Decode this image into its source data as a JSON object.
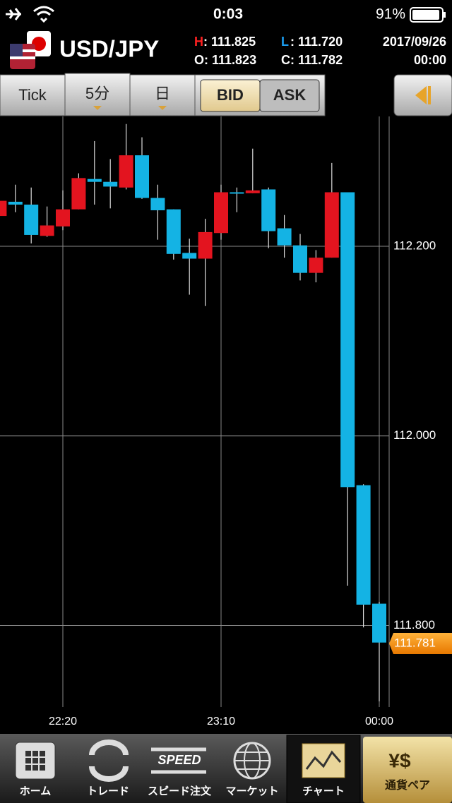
{
  "status_bar": {
    "time": "0:03",
    "battery": "91%"
  },
  "header": {
    "pair": "USD/JPY",
    "high_key": "H",
    "high": ": 111.825",
    "low_key": "L",
    "low": ": 111.720",
    "open": "O: 111.823",
    "close": "C: 111.782",
    "date": "2017/09/26",
    "time": "00:00"
  },
  "toolbar": {
    "tick": "Tick",
    "interval": "5分",
    "day": "日",
    "bid": "BID",
    "ask": "ASK"
  },
  "tabs": {
    "home": "ホーム",
    "trade": "トレード",
    "speed_icon": "SPEED",
    "speed": "スピード注文",
    "market": "マーケット",
    "chart": "チャート",
    "pairs": "通貨ペア"
  },
  "chart_data": {
    "type": "candlestick",
    "categories": [
      null,
      null,
      null,
      null,
      "22:20",
      null,
      null,
      null,
      null,
      null,
      null,
      null,
      null,
      null,
      "23:10",
      null,
      null,
      null,
      null,
      null,
      null,
      null,
      null,
      null,
      "00:00"
    ],
    "open": [
      112.232,
      112.247,
      112.244,
      112.211,
      112.221,
      112.239,
      112.271,
      112.268,
      112.262,
      112.296,
      112.251,
      112.239,
      112.193,
      112.187,
      112.214,
      112.257,
      112.256,
      112.26,
      112.219,
      112.201,
      112.172,
      112.188,
      112.257,
      111.948,
      111.823
    ],
    "high": [
      112.265,
      112.265,
      112.262,
      112.242,
      112.259,
      112.277,
      112.311,
      112.292,
      112.329,
      112.315,
      112.265,
      112.239,
      112.208,
      112.229,
      112.265,
      112.262,
      112.303,
      112.262,
      112.233,
      112.213,
      112.196,
      112.288,
      112.257,
      111.949,
      111.825
    ],
    "low": [
      112.232,
      112.236,
      112.203,
      112.21,
      112.217,
      112.239,
      112.244,
      112.24,
      112.26,
      112.25,
      112.207,
      112.186,
      112.149,
      112.137,
      112.207,
      112.236,
      112.256,
      112.198,
      112.188,
      112.164,
      112.162,
      112.188,
      111.842,
      111.798,
      111.72
    ],
    "close": [
      112.248,
      112.244,
      112.212,
      112.222,
      112.239,
      112.272,
      112.268,
      112.263,
      112.296,
      112.251,
      112.238,
      112.192,
      112.187,
      112.215,
      112.257,
      112.256,
      112.259,
      112.216,
      112.201,
      112.172,
      112.188,
      112.257,
      111.946,
      111.822,
      111.782
    ],
    "up_color": "#e3141f",
    "down_color": "#14b3e4",
    "ylim": [
      111.714,
      112.337
    ],
    "yticks": [
      {
        "value": 111.8,
        "label": "111.800"
      },
      {
        "value": 112.0,
        "label": "112.000"
      },
      {
        "value": 112.2,
        "label": "112.200"
      }
    ],
    "grid": true,
    "current_price": 111.781
  }
}
